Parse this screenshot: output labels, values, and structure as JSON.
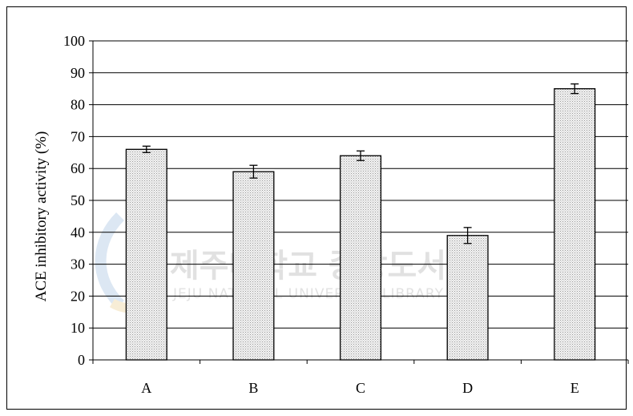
{
  "chart_data": {
    "type": "bar",
    "title": "",
    "xlabel": "",
    "ylabel": "ACE inhibitory activity (%)",
    "categories": [
      "A",
      "B",
      "C",
      "D",
      "E"
    ],
    "values": [
      66,
      59,
      64,
      39,
      85
    ],
    "errors": [
      1,
      2,
      1.5,
      2.5,
      1.5
    ],
    "ylim": [
      0,
      100
    ],
    "yticks": [
      0,
      10,
      20,
      30,
      40,
      50,
      60,
      70,
      80,
      90,
      100
    ],
    "grid": true,
    "legend": "none",
    "bar_fill": "#e8e8e8",
    "bar_stroke": "#000000"
  },
  "watermark": {
    "korean": "제주대학교 중앙도서관",
    "english": "JEJU NATIONAL UNIVERSITY LIBRARY",
    "logo_colors": [
      "#8fb3d9",
      "#e8c77a"
    ]
  }
}
